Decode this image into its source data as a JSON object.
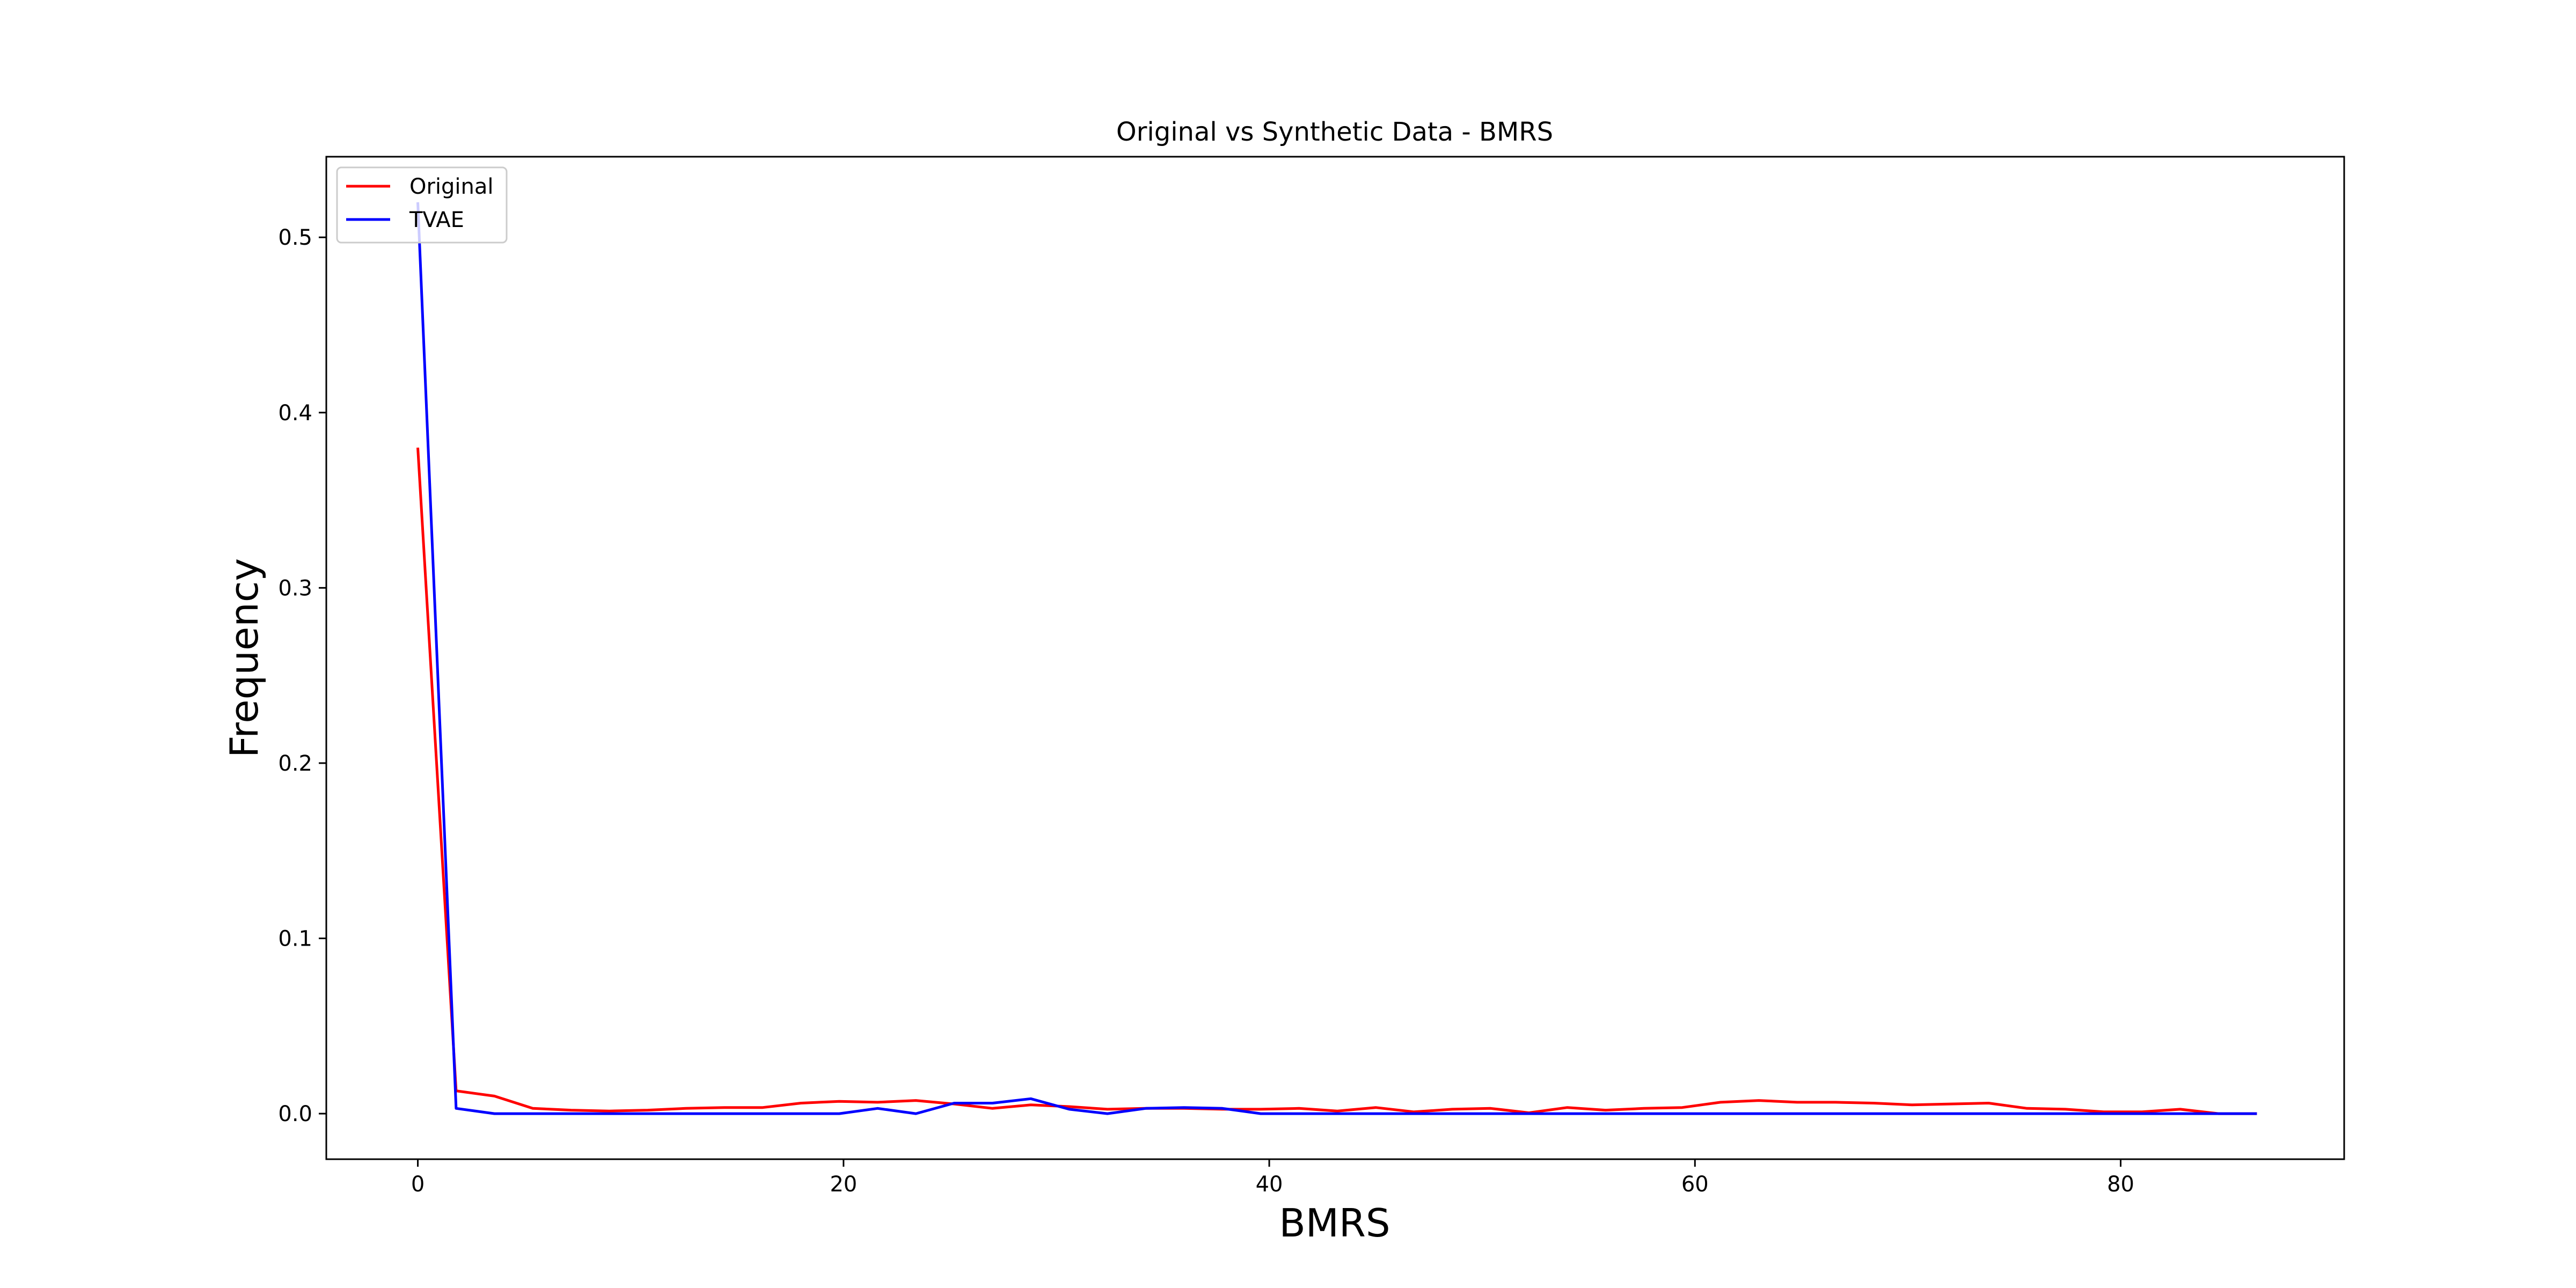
{
  "chart_data": {
    "type": "line",
    "title": "Original vs Synthetic Data - BMRS",
    "xlabel": "BMRS",
    "ylabel": "Frequency",
    "xlim": [
      -4.3,
      90.5
    ],
    "ylim": [
      -0.026,
      0.546
    ],
    "xticks": [
      0,
      20,
      40,
      60,
      80
    ],
    "yticks": [
      0.0,
      0.1,
      0.2,
      0.3,
      0.4,
      0.5
    ],
    "grid": false,
    "legend_position": "top-left",
    "series": [
      {
        "name": "Original",
        "color": "#ff0000",
        "x": [
          0,
          1.8,
          3.6,
          5.4,
          7.2,
          9.0,
          10.8,
          12.6,
          14.4,
          16.2,
          18.0,
          19.8,
          21.6,
          23.4,
          25.2,
          27.0,
          28.8,
          30.6,
          32.4,
          34.2,
          36.0,
          37.8,
          39.6,
          41.4,
          43.2,
          45.0,
          46.8,
          48.6,
          50.4,
          52.2,
          54.0,
          55.8,
          57.6,
          59.4,
          61.2,
          63.0,
          64.8,
          66.6,
          68.4,
          70.2,
          72.0,
          73.8,
          75.6,
          77.4,
          79.2,
          81.0,
          82.8,
          84.6,
          86.4
        ],
        "values": [
          0.38,
          0.013,
          0.01,
          0.003,
          0.002,
          0.0015,
          0.002,
          0.003,
          0.0035,
          0.0035,
          0.006,
          0.007,
          0.0065,
          0.0075,
          0.0055,
          0.003,
          0.005,
          0.004,
          0.0025,
          0.003,
          0.003,
          0.0025,
          0.0025,
          0.003,
          0.0015,
          0.0035,
          0.001,
          0.0025,
          0.003,
          0.0005,
          0.0035,
          0.002,
          0.003,
          0.0035,
          0.0065,
          0.0075,
          0.0065,
          0.0065,
          0.006,
          0.005,
          0.0055,
          0.006,
          0.003,
          0.0025,
          0.001,
          0.001,
          0.0025,
          0.0,
          0.0
        ]
      },
      {
        "name": "TVAE",
        "color": "#0000ff",
        "x": [
          0,
          1.8,
          3.6,
          5.4,
          7.2,
          9.0,
          10.8,
          12.6,
          14.4,
          16.2,
          18.0,
          19.8,
          21.6,
          23.4,
          25.2,
          27.0,
          28.8,
          30.6,
          32.4,
          34.2,
          36.0,
          37.8,
          39.6,
          41.4,
          43.2,
          45.0,
          46.8,
          48.6,
          50.4,
          52.2,
          54.0,
          55.8,
          57.6,
          59.4,
          61.2,
          63.0,
          64.8,
          66.6,
          68.4,
          70.2,
          72.0,
          73.8,
          75.6,
          77.4,
          79.2,
          81.0,
          82.8,
          84.6,
          86.4
        ],
        "values": [
          0.52,
          0.003,
          0.0,
          0.0,
          0.0,
          0.0,
          0.0,
          0.0,
          0.0,
          0.0,
          0.0,
          0.0,
          0.003,
          0.0,
          0.006,
          0.006,
          0.0085,
          0.0025,
          0.0,
          0.003,
          0.0035,
          0.003,
          0.0,
          0.0,
          0.0,
          0.0,
          0.0,
          0.0,
          0.0,
          0.0,
          0.0,
          0.0,
          0.0,
          0.0,
          0.0,
          0.0,
          0.0,
          0.0,
          0.0,
          0.0,
          0.0,
          0.0,
          0.0,
          0.0,
          0.0,
          0.0,
          0.0,
          0.0,
          0.0
        ]
      }
    ]
  }
}
